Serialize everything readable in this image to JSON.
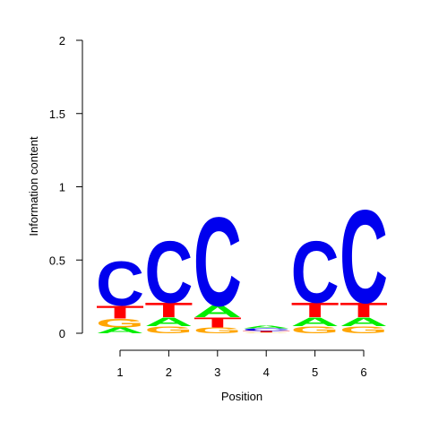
{
  "chart_data": {
    "type": "sequence-logo",
    "xlabel": "Position",
    "ylabel": "Information content",
    "ylim": [
      0,
      2
    ],
    "y_ticks": [
      {
        "value": 0,
        "label": "0"
      },
      {
        "value": 0.5,
        "label": "0.5"
      },
      {
        "value": 1,
        "label": "1"
      },
      {
        "value": 1.5,
        "label": "1.5"
      },
      {
        "value": 2,
        "label": "2"
      }
    ],
    "positions": [
      {
        "label": "1",
        "stack": [
          {
            "letter": "A",
            "height": 0.04
          },
          {
            "letter": "G",
            "height": 0.06
          },
          {
            "letter": "T",
            "height": 0.09
          },
          {
            "letter": "C",
            "height": 0.31
          }
        ]
      },
      {
        "label": "2",
        "stack": [
          {
            "letter": "G",
            "height": 0.05
          },
          {
            "letter": "A",
            "height": 0.06
          },
          {
            "letter": "T",
            "height": 0.1
          },
          {
            "letter": "C",
            "height": 0.43
          }
        ]
      },
      {
        "label": "3",
        "stack": [
          {
            "letter": "G",
            "height": 0.04
          },
          {
            "letter": "T",
            "height": 0.07
          },
          {
            "letter": "A",
            "height": 0.08
          },
          {
            "letter": "C",
            "height": 0.62
          }
        ]
      },
      {
        "label": "4",
        "stack": [
          {
            "letter": "G",
            "height": 0.005
          },
          {
            "letter": "T",
            "height": 0.01
          },
          {
            "letter": "C",
            "height": 0.02
          },
          {
            "letter": "A",
            "height": 0.02
          }
        ]
      },
      {
        "label": "5",
        "stack": [
          {
            "letter": "G",
            "height": 0.05
          },
          {
            "letter": "A",
            "height": 0.06
          },
          {
            "letter": "T",
            "height": 0.1
          },
          {
            "letter": "C",
            "height": 0.43
          }
        ]
      },
      {
        "label": "6",
        "stack": [
          {
            "letter": "G",
            "height": 0.05
          },
          {
            "letter": "A",
            "height": 0.06
          },
          {
            "letter": "T",
            "height": 0.1
          },
          {
            "letter": "C",
            "height": 0.65
          }
        ]
      }
    ],
    "colors": {
      "A": "#00ee00",
      "C": "#0000ee",
      "G": "#ffa500",
      "T": "#ff0000"
    }
  }
}
